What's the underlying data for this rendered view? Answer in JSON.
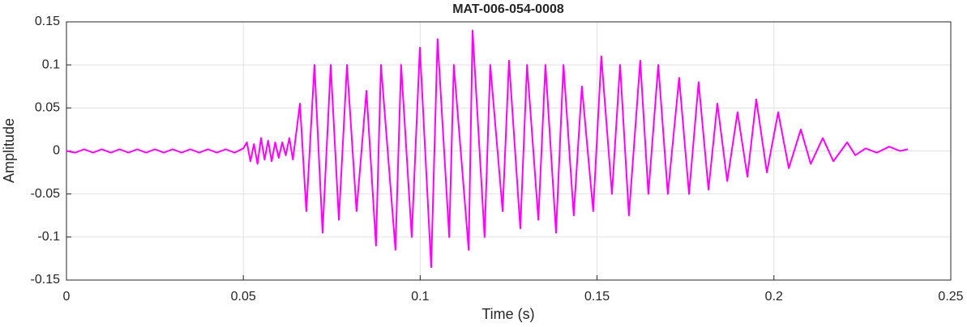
{
  "chart_data": {
    "type": "line",
    "title": "MAT-006-054-0008",
    "xlabel": "Time (s)",
    "ylabel": "Amplitude",
    "color": "#ff00ff",
    "grid": true,
    "xlim": [
      0,
      0.25
    ],
    "xticks": [
      0,
      0.05,
      0.1,
      0.15,
      0.2,
      0.25
    ],
    "ylim": [
      -0.15,
      0.15
    ],
    "yticks": [
      -0.15,
      -0.1,
      -0.05,
      0,
      0.05,
      0.1,
      0.15
    ],
    "x": [
      0,
      0.0025,
      0.005,
      0.0075,
      0.01,
      0.0125,
      0.015,
      0.0175,
      0.02,
      0.0225,
      0.025,
      0.0275,
      0.03,
      0.0325,
      0.035,
      0.0375,
      0.04,
      0.0425,
      0.045,
      0.0475,
      0.05,
      0.051,
      0.052,
      0.053,
      0.054,
      0.055,
      0.056,
      0.057,
      0.058,
      0.059,
      0.06,
      0.061,
      0.062,
      0.063,
      0.064,
      0.066,
      0.0678,
      0.0701,
      0.0724,
      0.0747,
      0.077,
      0.0793,
      0.082,
      0.0848,
      0.0875,
      0.0889,
      0.093,
      0.0946,
      0.0976,
      0.0999,
      0.1031,
      0.1049,
      0.1082,
      0.1095,
      0.1137,
      0.1148,
      0.1182,
      0.1198,
      0.1233,
      0.1251,
      0.1283,
      0.1302,
      0.1334,
      0.1354,
      0.1384,
      0.1405,
      0.1434,
      0.1457,
      0.1489,
      0.1512,
      0.1542,
      0.1565,
      0.159,
      0.1622,
      0.1645,
      0.1673,
      0.17,
      0.1732,
      0.176,
      0.1787,
      0.1815,
      0.184,
      0.1868,
      0.1897,
      0.1925,
      0.195,
      0.198,
      0.2012,
      0.2042,
      0.2076,
      0.2104,
      0.2138,
      0.2168,
      0.2207,
      0.223,
      0.2259,
      0.2291,
      0.2326,
      0.2356,
      0.2379
    ],
    "values": [
      0,
      -0.002,
      0.002,
      -0.002,
      0.002,
      -0.002,
      0.002,
      -0.002,
      0.002,
      -0.002,
      0.002,
      -0.002,
      0.002,
      -0.002,
      0.002,
      -0.002,
      0.002,
      -0.002,
      0.002,
      -0.002,
      0.003,
      0.01,
      -0.012,
      0.008,
      -0.015,
      0.015,
      -0.01,
      0.012,
      -0.012,
      0.01,
      -0.008,
      0.01,
      -0.005,
      0.015,
      -0.01,
      0.055,
      -0.07,
      0.1,
      -0.095,
      0.1,
      -0.08,
      0.1,
      -0.07,
      0.07,
      -0.11,
      0.1,
      -0.115,
      0.1,
      -0.1,
      0.12,
      -0.135,
      0.13,
      -0.1,
      0.1,
      -0.115,
      0.14,
      -0.1,
      0.1,
      -0.07,
      0.105,
      -0.09,
      0.1,
      -0.08,
      0.1,
      -0.095,
      0.1,
      -0.075,
      0.075,
      -0.07,
      0.11,
      -0.05,
      0.1,
      -0.075,
      0.105,
      -0.05,
      0.1,
      -0.05,
      0.085,
      -0.05,
      0.08,
      -0.045,
      0.055,
      -0.035,
      0.045,
      -0.03,
      0.06,
      -0.025,
      0.045,
      -0.02,
      0.025,
      -0.015,
      0.015,
      -0.012,
      0.01,
      -0.005,
      0.003,
      -0.002,
      0.005,
      0,
      0.002
    ]
  }
}
